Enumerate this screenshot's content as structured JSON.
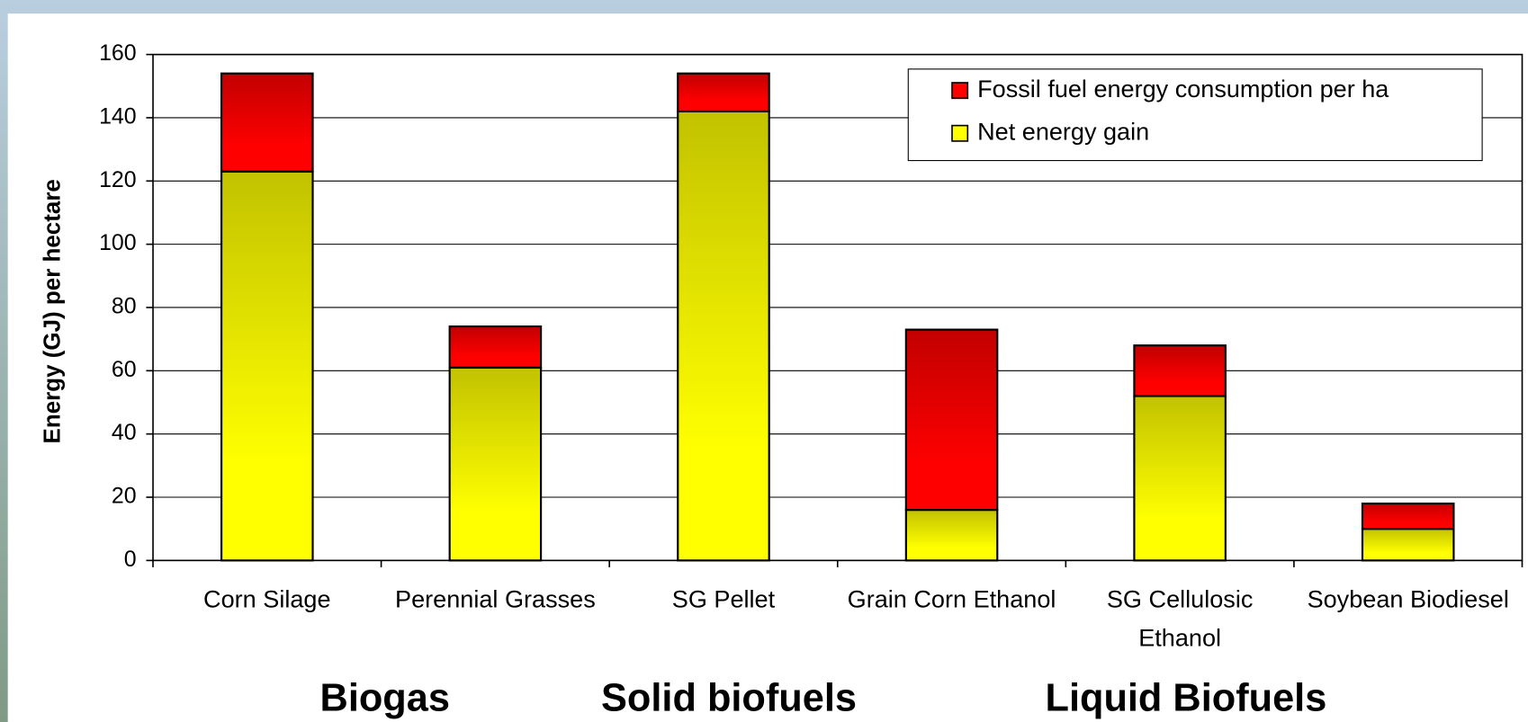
{
  "chart_data": {
    "type": "stacked_bar",
    "ylabel": "Energy (GJ) per hectare",
    "categories": [
      "Corn Silage",
      "Perennial Grasses",
      "SG Pellet",
      "Grain Corn Ethanol",
      "SG Cellulosic Ethanol",
      "Soybean Biodiesel"
    ],
    "series": [
      {
        "name": "Net energy gain",
        "color": "#ffff00",
        "values": [
          123,
          61,
          142,
          16,
          52,
          10
        ]
      },
      {
        "name": "Fossil fuel energy consumption per ha",
        "color": "#ff0000",
        "values": [
          31,
          13,
          12,
          57,
          16,
          8
        ]
      }
    ],
    "groups": [
      "Biogas",
      "Solid biofuels",
      "Liquid Biofuels"
    ],
    "ylim": [
      0,
      160
    ],
    "yticks": [
      0,
      20,
      40,
      60,
      80,
      100,
      120,
      140,
      160
    ],
    "grid": true,
    "legend": "upper right"
  }
}
